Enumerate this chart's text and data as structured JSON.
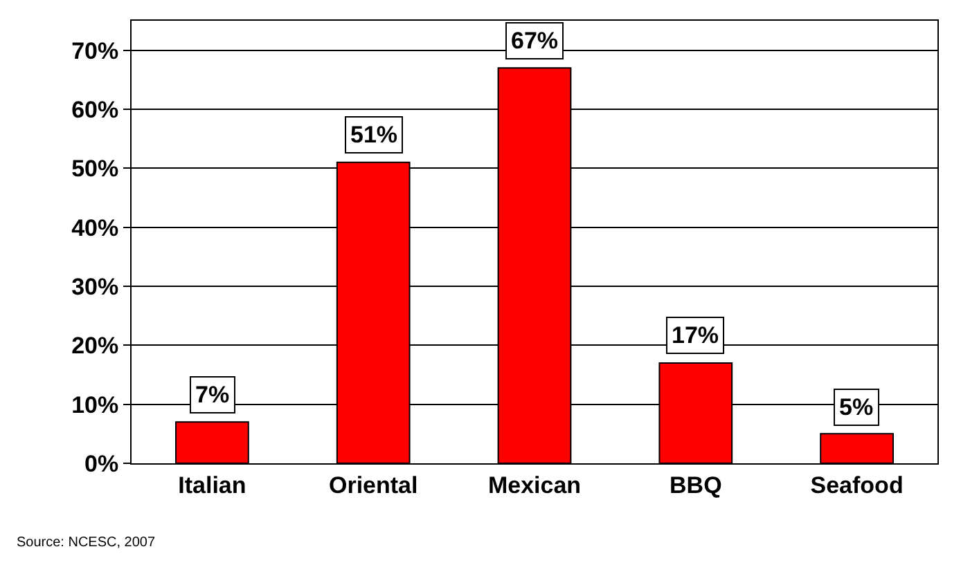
{
  "chart_data": {
    "type": "bar",
    "categories": [
      "Italian",
      "Oriental",
      "Mexican",
      "BBQ",
      "Seafood"
    ],
    "values": [
      7,
      51,
      67,
      17,
      5
    ],
    "color": "#ff0000",
    "value_labels": [
      "7%",
      "51%",
      "67%",
      "17%",
      "5%"
    ],
    "ylim": [
      0,
      75
    ],
    "yticks": [
      {
        "value": 0,
        "label": "0%"
      },
      {
        "value": 10,
        "label": "10%"
      },
      {
        "value": 20,
        "label": "20%"
      },
      {
        "value": 30,
        "label": "30%"
      },
      {
        "value": 40,
        "label": "40%"
      },
      {
        "value": 50,
        "label": "50%"
      },
      {
        "value": 60,
        "label": "60%"
      },
      {
        "value": 70,
        "label": "70%"
      }
    ],
    "grid": "y",
    "annotations": [
      "Source: NCESC, 2007"
    ]
  }
}
